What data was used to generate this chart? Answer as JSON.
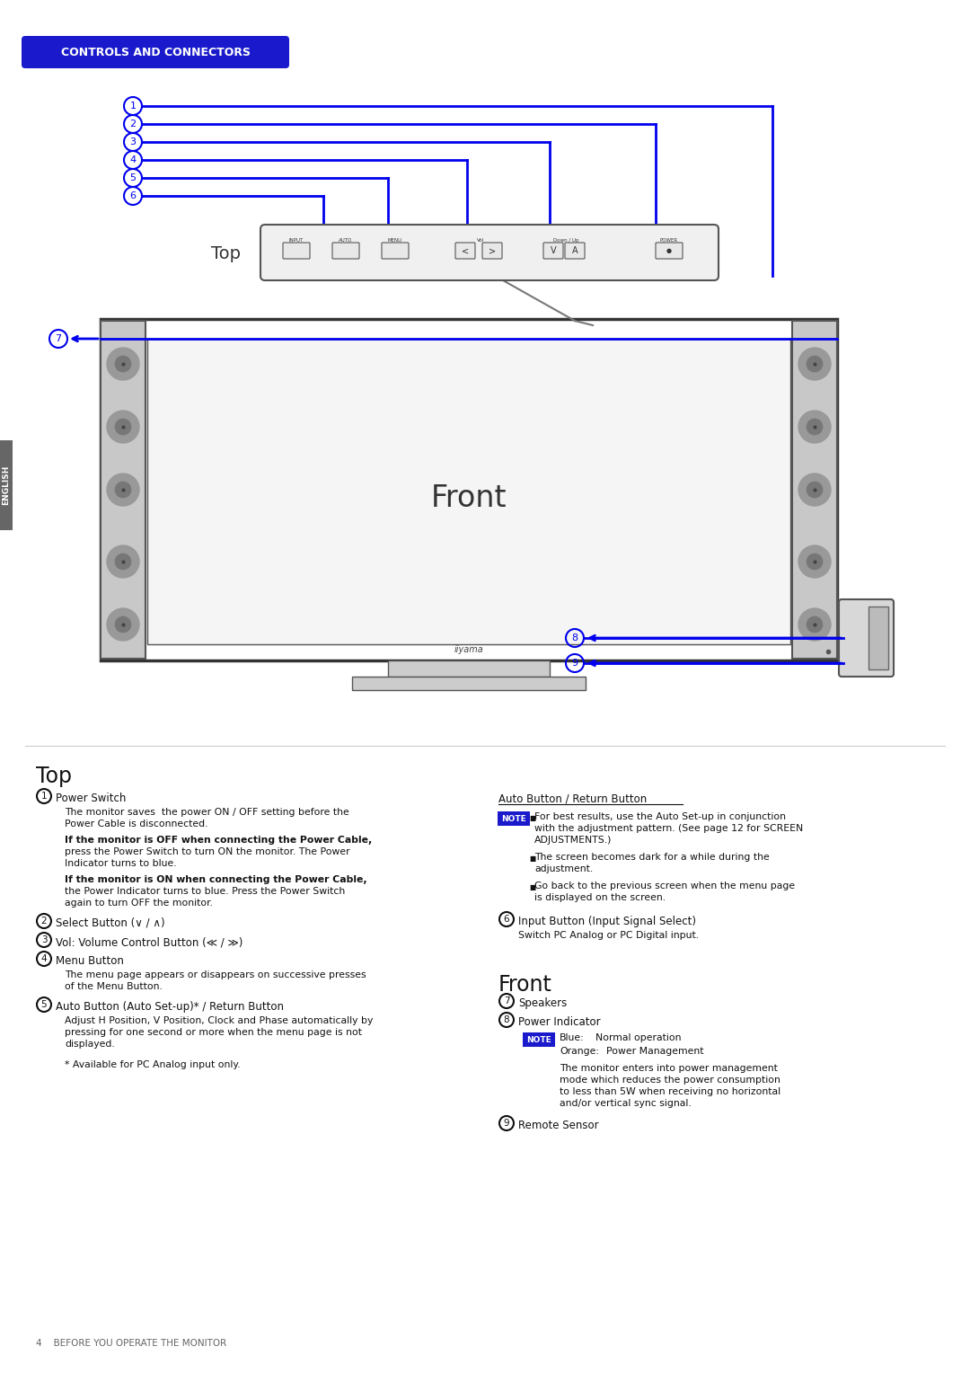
{
  "page_bg": "#ffffff",
  "blue": "#0000ee",
  "header_bg": "#1a1acc",
  "header_text": "CONTROLS AND CONNECTORS",
  "gray_dark": "#333333",
  "gray_med": "#666666",
  "gray_light": "#aaaaaa",
  "gray_spk": "#999999",
  "gray_spk_face": "#bbbbbb",
  "english_text": "ENGLISH",
  "top_label": "Top",
  "front_label": "Front",
  "footer_text": "4    BEFORE YOU OPERATE THE MONITOR"
}
